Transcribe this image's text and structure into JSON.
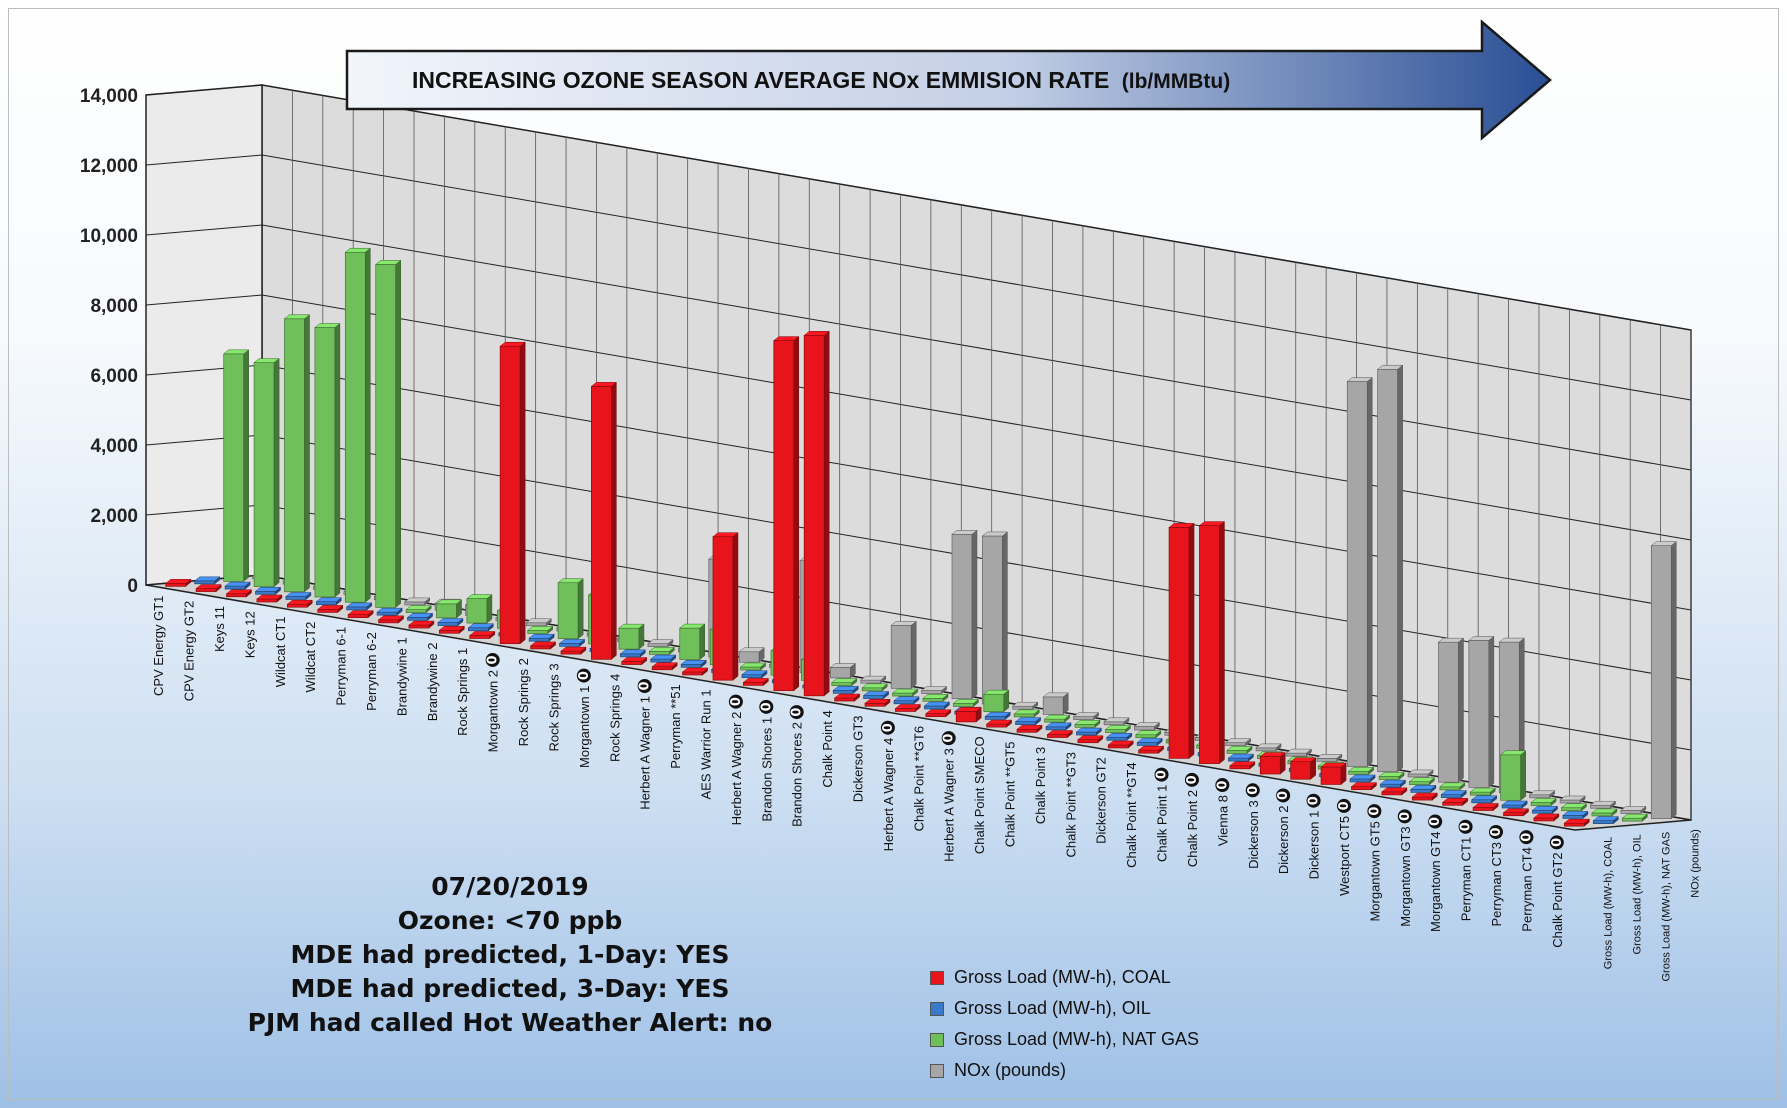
{
  "chart_data": {
    "type": "bar",
    "subtype": "3d-bar",
    "title": "INCREASING OZONE SEASON AVERAGE NOx EMMISION RATE",
    "title_unit": "(lb/MMBtu)",
    "ylim": [
      0,
      14000
    ],
    "yticks": [
      "0",
      "2,000",
      "4,000",
      "6,000",
      "8,000",
      "10,000",
      "12,000",
      "14,000"
    ],
    "grid": true,
    "legend_position": "bottom-right",
    "categories": [
      "CPV Energy GT1",
      "CPV Energy GT2",
      "Keys 11",
      "Keys 12",
      "Wildcat CT1",
      "Wildcat CT2",
      "Perryman 6-1",
      "Perryman 6-2",
      "Brandywine 1",
      "Brandywine 2",
      "Rock Springs 1",
      "Morgantown 2",
      "Rock Springs 2",
      "Rock Springs 3",
      "Morgantown 1",
      "Rock Springs 4",
      "Herbert A Wagner 1",
      "Perryman **51",
      "AES Warrior Run 1",
      "Herbert A Wagner 2",
      "Brandon Shores 1",
      "Brandon Shores 2",
      "Chalk Point 4",
      "Dickerson GT3",
      "Herbert A Wagner 4",
      "Chalk Point **GT6",
      "Herbert A Wagner 3",
      "Chalk Point SMECO",
      "Chalk Point **GT5",
      "Chalk Point 3",
      "Chalk Point **GT3",
      "Dickerson GT2",
      "Chalk Point **GT4",
      "Chalk Point 1",
      "Chalk Point 2",
      "Vienna 8",
      "Dickerson 3",
      "Dickerson 2",
      "Dickerson 1",
      "Westport CT5",
      "Morgantown GT5",
      "Morgantown GT3",
      "Morgantown GT4",
      "Perryman CT1",
      "Perryman CT3",
      "Perryman CT4",
      "Chalk Point GT2"
    ],
    "zero_marked": [
      false,
      false,
      false,
      false,
      false,
      false,
      false,
      false,
      false,
      false,
      false,
      true,
      false,
      false,
      true,
      false,
      true,
      false,
      false,
      true,
      true,
      true,
      false,
      false,
      true,
      false,
      true,
      false,
      false,
      false,
      false,
      false,
      false,
      true,
      true,
      true,
      true,
      true,
      true,
      true,
      true,
      true,
      true,
      true,
      true,
      true,
      true
    ],
    "zero_mark_symbol": "0",
    "series": [
      {
        "name": "Gross Load (MW-h), COAL",
        "axis_label": "Gross Load (MW-h), COAL",
        "color": "#e8141b",
        "values": [
          0,
          0,
          0,
          0,
          0,
          0,
          0,
          0,
          0,
          0,
          0,
          8500,
          0,
          0,
          7800,
          0,
          0,
          0,
          4100,
          0,
          10000,
          10300,
          0,
          0,
          0,
          0,
          300,
          0,
          0,
          0,
          0,
          0,
          0,
          6600,
          6800,
          0,
          500,
          500,
          500,
          0,
          0,
          0,
          0,
          0,
          0,
          0,
          0
        ]
      },
      {
        "name": "Gross Load (MW-h), OIL",
        "axis_label": "Gross Load (MW-h), OIL",
        "color": "#3a78c8",
        "values": [
          0,
          0,
          0,
          0,
          0,
          0,
          0,
          0,
          0,
          0,
          0,
          0,
          0,
          0,
          0,
          0,
          0,
          0,
          0,
          0,
          0,
          0,
          0,
          0,
          0,
          0,
          0,
          0,
          0,
          0,
          0,
          0,
          0,
          0,
          0,
          0,
          0,
          0,
          0,
          0,
          0,
          0,
          0,
          0,
          0,
          0,
          0
        ]
      },
      {
        "name": "Gross Load (MW-h), NAT GAS",
        "axis_label": "Gross Load (MW-h), NAT GAS",
        "color": "#6fc05a",
        "values": [
          6500,
          6400,
          7800,
          7700,
          10000,
          9800,
          0,
          400,
          700,
          500,
          0,
          1600,
          1400,
          600,
          0,
          900,
          1000,
          0,
          700,
          600,
          0,
          0,
          0,
          0,
          0,
          500,
          0,
          0,
          0,
          0,
          0,
          0,
          0,
          0,
          0,
          0,
          0,
          0,
          0,
          0,
          0,
          0,
          1300,
          0,
          0,
          0,
          0
        ]
      },
      {
        "name": "NOx (pounds)",
        "axis_label": "NOx (pounds)",
        "color": "#a6a6a6",
        "values": [
          0,
          0,
          0,
          0,
          0,
          0,
          200,
          300,
          0,
          0,
          0,
          0,
          0,
          0,
          0,
          2800,
          300,
          0,
          3200,
          300,
          0,
          1800,
          0,
          4700,
          4800,
          0,
          500,
          0,
          0,
          100,
          0,
          0,
          0,
          0,
          0,
          0,
          11000,
          11500,
          0,
          4000,
          4200,
          4300,
          0,
          0,
          0,
          0,
          7800
        ]
      }
    ]
  },
  "info": {
    "date": "07/20/2019",
    "ozone": "Ozone: <70 ppb",
    "one_day": "MDE had predicted, 1-Day: YES",
    "three_day": "MDE had predicted, 3-Day: YES",
    "pjm": "PJM had called Hot Weather Alert: no"
  }
}
